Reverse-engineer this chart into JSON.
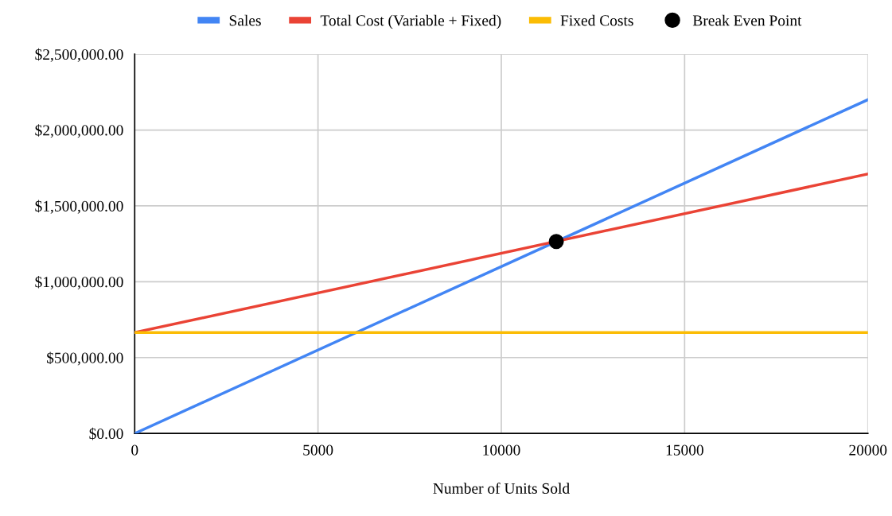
{
  "chart_data": {
    "type": "line",
    "xlabel": "Number of Units Sold",
    "xlim": [
      0,
      20000
    ],
    "xticks": [
      0,
      5000,
      10000,
      15000,
      20000
    ],
    "ylim": [
      0,
      2500000
    ],
    "yticks": [
      {
        "value": 0,
        "label": "$0.00"
      },
      {
        "value": 500000,
        "label": "$500,000.00"
      },
      {
        "value": 1000000,
        "label": "$1,000,000.00"
      },
      {
        "value": 1500000,
        "label": "$1,500,000.00"
      },
      {
        "value": 2000000,
        "label": "$2,000,000.00"
      },
      {
        "value": 2500000,
        "label": "$2,500,000.00"
      }
    ],
    "grid": true,
    "legend": "top",
    "series": [
      {
        "name": "Sales",
        "color": "#4285f4",
        "x": [
          0,
          20000
        ],
        "values": [
          0,
          2200000
        ]
      },
      {
        "name": "Total Cost (Variable + Fixed)",
        "color": "#ea4335",
        "x": [
          0,
          20000
        ],
        "values": [
          665000,
          1710000
        ]
      },
      {
        "name": "Fixed Costs",
        "color": "#fbbc04",
        "x": [
          0,
          20000
        ],
        "values": [
          665000,
          665000
        ]
      },
      {
        "name": "Break Even Point",
        "color": "#000000",
        "type": "scatter",
        "marker": "circle",
        "x": [
          11500
        ],
        "values": [
          1265000
        ]
      }
    ]
  }
}
